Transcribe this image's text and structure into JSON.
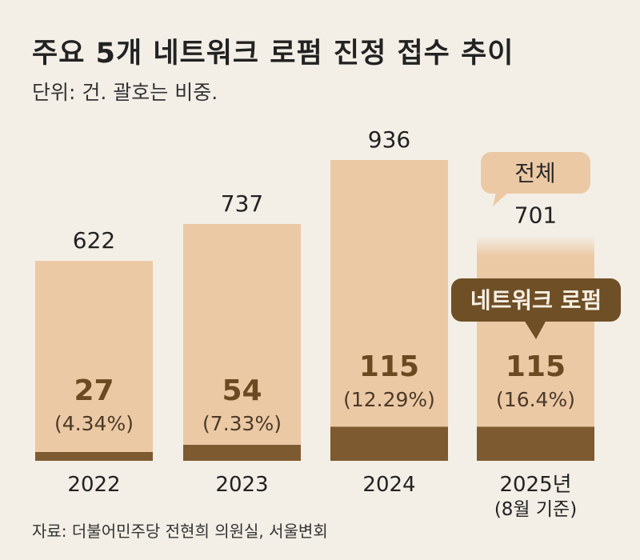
{
  "title": "주요 5개 네트워크 로펌 진정 접수 추이",
  "subtitle": "단위: 건. 괄호는 비중.",
  "source": "자료: 더불어민주당 전현희 의원실, 서울변회",
  "colors": {
    "background": "#f3efe7",
    "total_bar": "#ecc9a5",
    "network_bar": "#7d5a2f",
    "callout_total": "#ecc9a5",
    "callout_network": "#6f4f26",
    "value_dark": "#6b4a22"
  },
  "legend": {
    "total": "전체",
    "network": "네트워크 로펌"
  },
  "chart_data": {
    "type": "bar",
    "categories": [
      "2022",
      "2023",
      "2024",
      "2025년"
    ],
    "category_notes": [
      "",
      "",
      "",
      "(8월 기준)"
    ],
    "series": [
      {
        "name": "전체",
        "values": [
          622,
          737,
          936,
          701
        ]
      },
      {
        "name": "네트워크 로펌",
        "values": [
          27,
          54,
          115,
          115
        ]
      }
    ],
    "share_labels": [
      "(4.34%)",
      "(7.33%)",
      "(12.29%)",
      "(16.4%)"
    ],
    "total_labels": [
      "622",
      "737",
      "936",
      "701"
    ],
    "network_labels": [
      "27",
      "54",
      "115",
      "115"
    ],
    "ylim": [
      0,
      936
    ],
    "partial_last": true
  }
}
